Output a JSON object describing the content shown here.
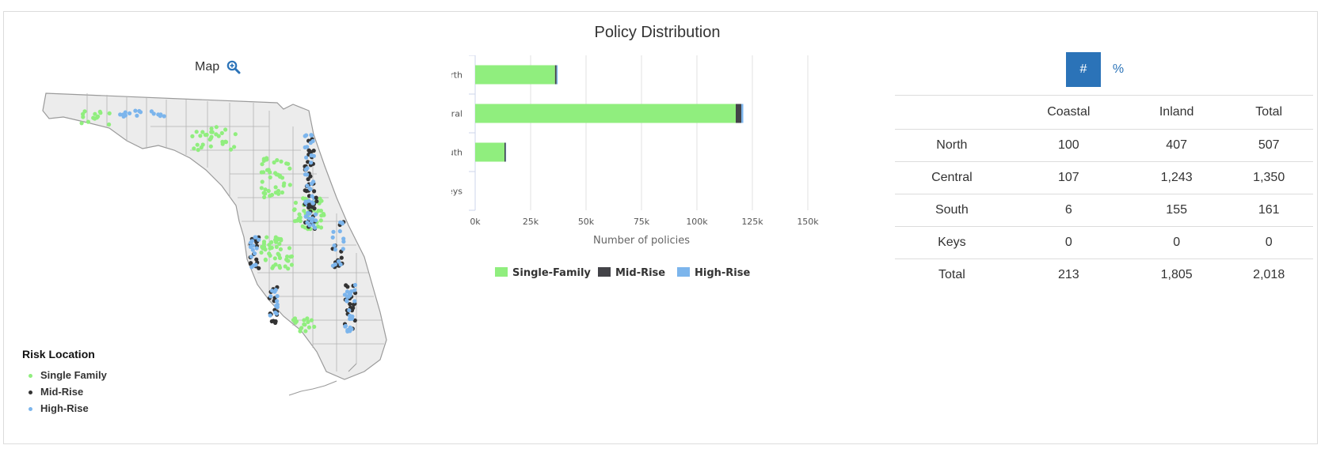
{
  "map": {
    "title": "Map",
    "zoom_icon": "magnifier-plus-icon",
    "legend": {
      "title": "Risk Location",
      "items": [
        {
          "label": "Single Family",
          "color": "#90ee7e"
        },
        {
          "label": "Mid-Rise",
          "color": "#333333"
        },
        {
          "label": "High-Rise",
          "color": "#7cb5ec"
        }
      ]
    }
  },
  "chart_data": {
    "type": "bar",
    "orientation": "horizontal",
    "stacked": true,
    "title": "Policy Distribution",
    "xlabel": "Number of policies",
    "ylabel": "",
    "categories": [
      "North",
      "Central",
      "South",
      "Keys"
    ],
    "xlim": [
      0,
      150000
    ],
    "ticks": [
      0,
      25000,
      50000,
      75000,
      100000,
      125000,
      150000
    ],
    "tick_labels": [
      "0k",
      "25k",
      "50k",
      "75k",
      "100k",
      "125k",
      "150k"
    ],
    "grid": true,
    "legend_position": "bottom",
    "series": [
      {
        "name": "Single-Family",
        "color": "#90ee7e",
        "values": [
          36000,
          117500,
          13200,
          0
        ]
      },
      {
        "name": "Mid-Rise",
        "color": "#434348",
        "values": [
          700,
          2500,
          600,
          0
        ]
      },
      {
        "name": "High-Rise",
        "color": "#7cb5ec",
        "values": [
          500,
          900,
          150,
          0
        ]
      }
    ]
  },
  "table": {
    "toggle": {
      "count_label": "#",
      "percent_label": "%",
      "active": "count"
    },
    "columns": [
      "",
      "Coastal",
      "Inland",
      "Total"
    ],
    "rows": [
      {
        "region": "North",
        "coastal": "100",
        "inland": "407",
        "total": "507"
      },
      {
        "region": "Central",
        "coastal": "107",
        "inland": "1,243",
        "total": "1,350"
      },
      {
        "region": "South",
        "coastal": "6",
        "inland": "155",
        "total": "161"
      },
      {
        "region": "Keys",
        "coastal": "0",
        "inland": "0",
        "total": "0"
      },
      {
        "region": "Total",
        "coastal": "213",
        "inland": "1,805",
        "total": "2,018"
      }
    ]
  }
}
